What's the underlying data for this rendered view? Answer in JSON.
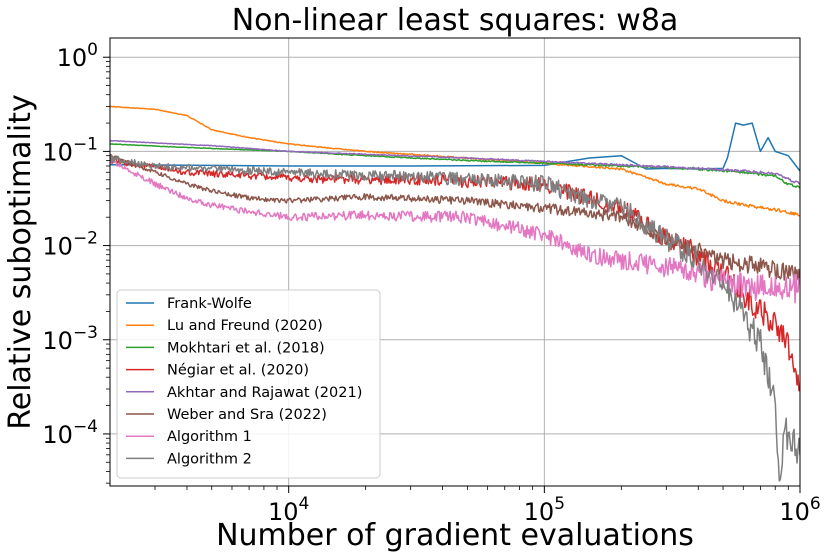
{
  "chart_data": {
    "type": "line",
    "title": "Non-linear least squares: w8a",
    "xlabel": "Number of gradient evaluations",
    "ylabel": "Relative suboptimality",
    "xscale": "log",
    "yscale": "log",
    "xlim": [
      2000,
      1000000
    ],
    "ylim": [
      2.8e-05,
      1.6
    ],
    "grid": true,
    "legend_position": "lower-left",
    "x_ticks": [
      {
        "value": 10000,
        "base": "10",
        "exp": "4"
      },
      {
        "value": 100000,
        "base": "10",
        "exp": "5"
      },
      {
        "value": 1000000,
        "base": "10",
        "exp": "6"
      }
    ],
    "y_ticks": [
      {
        "value": 1,
        "base": "10",
        "exp": "0"
      },
      {
        "value": 0.1,
        "base": "10",
        "exp": "−1"
      },
      {
        "value": 0.01,
        "base": "10",
        "exp": "−2"
      },
      {
        "value": 0.001,
        "base": "10",
        "exp": "−3"
      },
      {
        "value": 0.0001,
        "base": "10",
        "exp": "−4"
      }
    ],
    "series": [
      {
        "name": "Frank-Wolfe",
        "color": "#1f77b4",
        "noise": 0,
        "x": [
          2000,
          5000,
          10000,
          30000,
          100000,
          150000,
          200000,
          250000,
          300000,
          400000,
          500000,
          520000,
          560000,
          600000,
          650000,
          700000,
          750000,
          800000,
          900000,
          1000000
        ],
        "y": [
          0.072,
          0.071,
          0.07,
          0.07,
          0.071,
          0.085,
          0.09,
          0.065,
          0.066,
          0.065,
          0.066,
          0.085,
          0.2,
          0.19,
          0.2,
          0.1,
          0.14,
          0.1,
          0.09,
          0.062
        ]
      },
      {
        "name": "Lu and Freund (2020)",
        "color": "#ff7f0e",
        "noise": 0.01,
        "x": [
          2000,
          3000,
          4000,
          5000,
          7000,
          10000,
          20000,
          50000,
          100000,
          200000,
          300000,
          400000,
          500000,
          600000,
          800000,
          1000000
        ],
        "y": [
          0.3,
          0.28,
          0.24,
          0.17,
          0.14,
          0.12,
          0.1,
          0.085,
          0.075,
          0.065,
          0.045,
          0.04,
          0.03,
          0.027,
          0.024,
          0.021
        ]
      },
      {
        "name": "Mokhtari et al. (2018)",
        "color": "#2ca02c",
        "noise": 0.008,
        "x": [
          2000,
          4000,
          10000,
          20000,
          50000,
          100000,
          200000,
          400000,
          600000,
          800000,
          900000,
          1000000
        ],
        "y": [
          0.12,
          0.11,
          0.1,
          0.09,
          0.08,
          0.075,
          0.07,
          0.065,
          0.06,
          0.055,
          0.045,
          0.042
        ]
      },
      {
        "name": "Négiar et al. (2020)",
        "color": "#d62728",
        "noise": 0.09,
        "x": [
          2000,
          4000,
          10000,
          20000,
          30000,
          50000,
          100000,
          130000,
          200000,
          300000,
          400000,
          500000,
          600000,
          700000,
          800000,
          850000,
          900000,
          950000,
          1000000
        ],
        "y": [
          0.08,
          0.06,
          0.052,
          0.05,
          0.05,
          0.048,
          0.045,
          0.035,
          0.025,
          0.012,
          0.008,
          0.005,
          0.003,
          0.002,
          0.0015,
          0.0012,
          0.0009,
          0.0006,
          0.00025
        ]
      },
      {
        "name": "Akhtar and Rajawat (2021)",
        "color": "#9467bd",
        "noise": 0.008,
        "x": [
          2000,
          5000,
          10000,
          50000,
          100000,
          200000,
          400000,
          600000,
          700000,
          800000,
          1000000
        ],
        "y": [
          0.13,
          0.115,
          0.1,
          0.085,
          0.078,
          0.072,
          0.066,
          0.062,
          0.06,
          0.058,
          0.045
        ]
      },
      {
        "name": "Weber and Sra (2022)",
        "color": "#8c564b",
        "noise": 0.06,
        "x": [
          2000,
          3000,
          4000,
          5000,
          7000,
          10000,
          20000,
          50000,
          100000,
          200000,
          300000,
          400000,
          500000,
          700000,
          1000000
        ],
        "y": [
          0.09,
          0.06,
          0.045,
          0.038,
          0.032,
          0.03,
          0.033,
          0.03,
          0.025,
          0.02,
          0.012,
          0.009,
          0.007,
          0.006,
          0.005
        ]
      },
      {
        "name": "Algorithm 1",
        "color": "#e377c2",
        "noise": 0.09,
        "x": [
          2000,
          3000,
          4000,
          5000,
          7000,
          10000,
          20000,
          50000,
          80000,
          100000,
          150000,
          200000,
          300000,
          400000,
          500000,
          700000,
          1000000
        ],
        "y": [
          0.08,
          0.045,
          0.032,
          0.027,
          0.023,
          0.02,
          0.021,
          0.02,
          0.015,
          0.013,
          0.008,
          0.007,
          0.006,
          0.005,
          0.004,
          0.0035,
          0.0035
        ]
      },
      {
        "name": "Algorithm 2",
        "color": "#7f7f7f",
        "noise": 0.1,
        "x": [
          2000,
          3000,
          5000,
          10000,
          20000,
          30000,
          50000,
          100000,
          130000,
          200000,
          300000,
          400000,
          500000,
          600000,
          700000,
          800000,
          820000,
          840000,
          870000,
          900000,
          1000000
        ],
        "y": [
          0.085,
          0.07,
          0.065,
          0.06,
          0.055,
          0.055,
          0.05,
          0.045,
          0.035,
          0.025,
          0.012,
          0.007,
          0.004,
          0.0018,
          0.0009,
          0.0002,
          5e-05,
          3e-05,
          0.0001,
          0.0001,
          6e-05
        ]
      }
    ]
  }
}
